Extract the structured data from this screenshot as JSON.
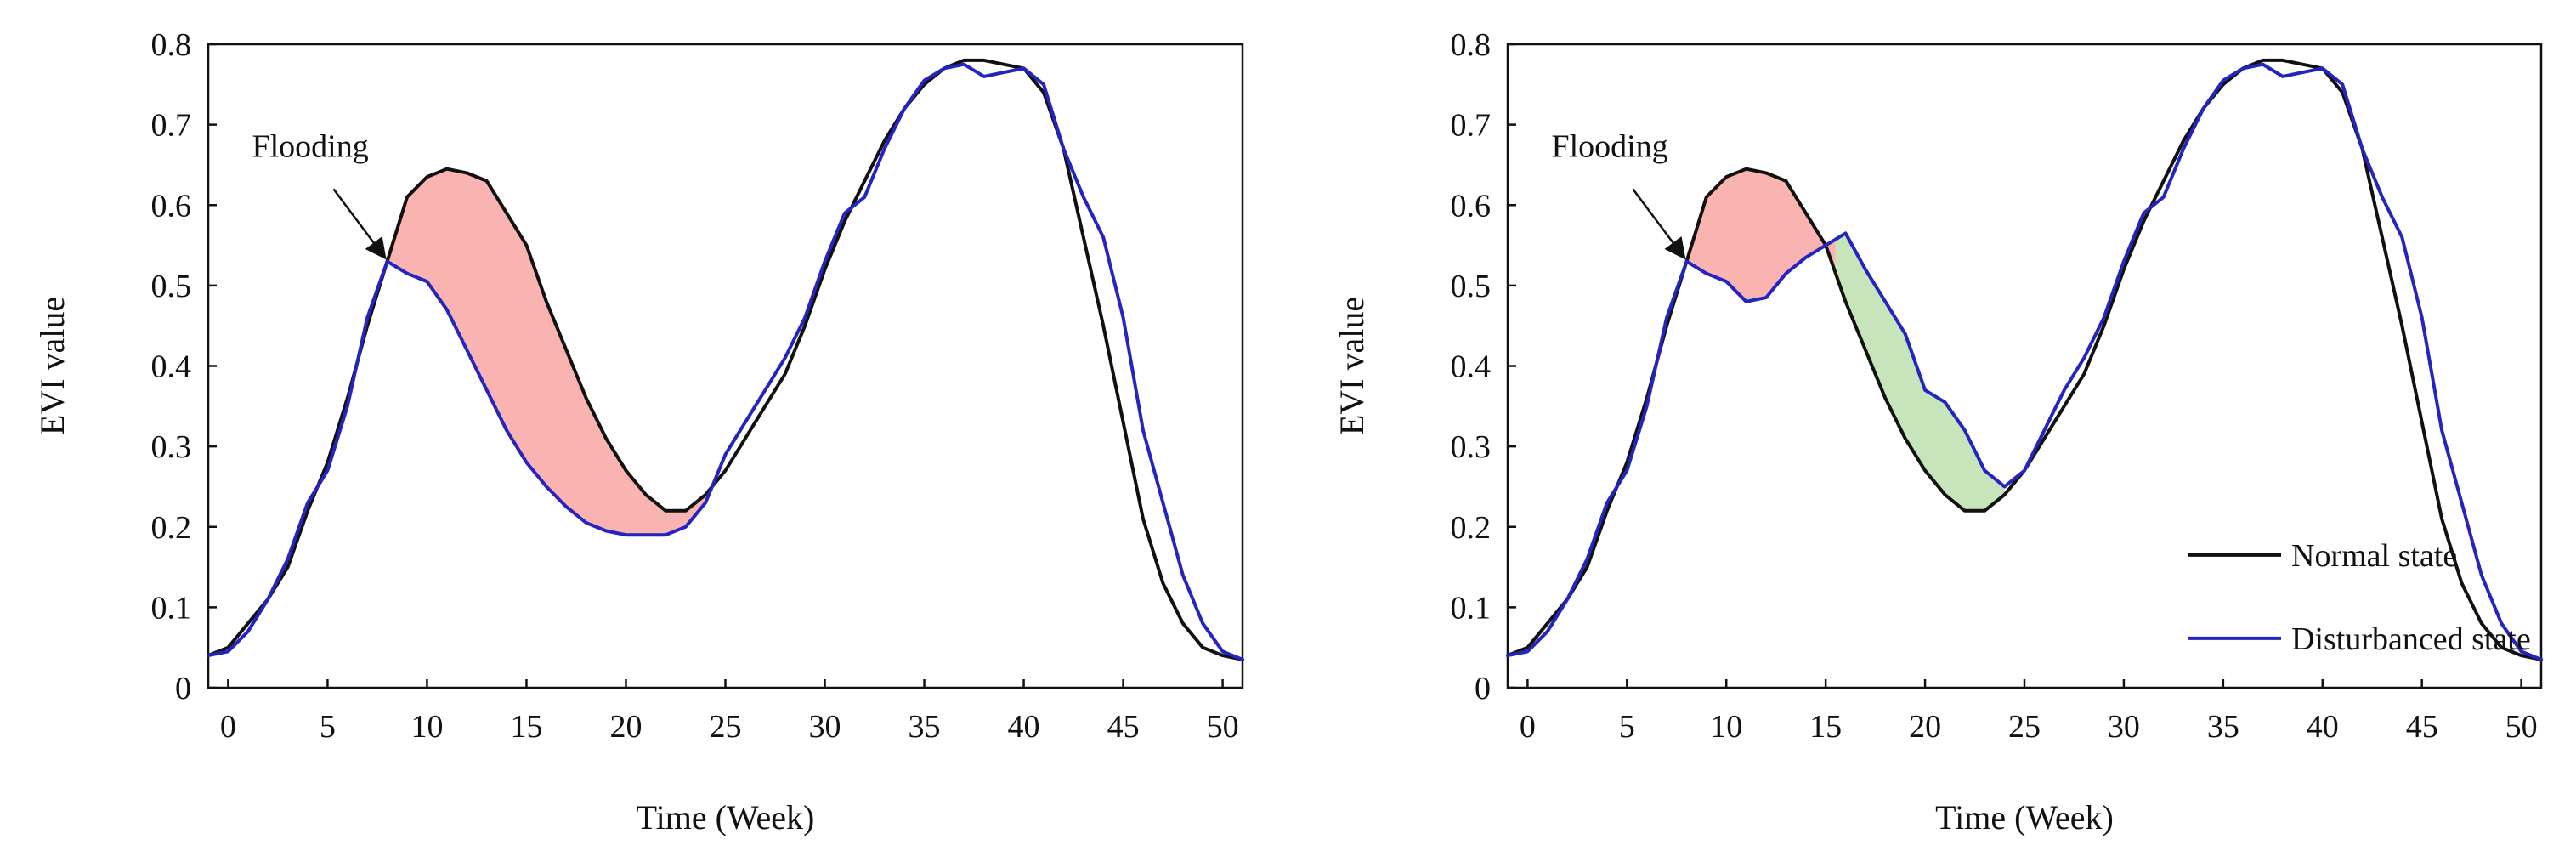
{
  "chart_data": [
    {
      "type": "line",
      "xlabel": "Time (Week)",
      "ylabel": "EVI value",
      "xlim": [
        -1,
        51
      ],
      "ylim": [
        0,
        0.8
      ],
      "xticks": [
        0,
        5,
        10,
        15,
        20,
        25,
        30,
        35,
        40,
        45,
        50
      ],
      "yticks": [
        0,
        0.1,
        0.2,
        0.3,
        0.4,
        0.5,
        0.6,
        0.7,
        0.8
      ],
      "ytick_labels": [
        "0",
        "0.1",
        "0.2",
        "0.3",
        "0.4",
        "0.5",
        "0.6",
        "0.7",
        "0.8"
      ],
      "annotation": {
        "text": "Flooding",
        "arrow_to": [
          8,
          0.53
        ],
        "text_at": [
          1.2,
          0.66
        ]
      },
      "shaded_regions": [
        {
          "color": "#f9b3b1",
          "x_from": 8,
          "x_to": 24.5,
          "upper": "normal",
          "lower": "disturbed"
        }
      ],
      "series": [
        {
          "key": "normal",
          "color": "#111111",
          "x": [
            -1,
            0,
            1,
            2,
            3,
            4,
            5,
            6,
            7,
            8,
            9,
            10,
            11,
            12,
            13,
            14,
            15,
            16,
            17,
            18,
            19,
            20,
            21,
            22,
            23,
            24,
            25,
            26,
            27,
            28,
            29,
            30,
            31,
            32,
            33,
            34,
            35,
            36,
            37,
            38,
            39,
            40,
            41,
            42,
            43,
            44,
            45,
            46,
            47,
            48,
            49,
            50,
            51
          ],
          "y": [
            0.04,
            0.05,
            0.08,
            0.11,
            0.15,
            0.22,
            0.28,
            0.36,
            0.45,
            0.53,
            0.61,
            0.635,
            0.645,
            0.64,
            0.63,
            0.59,
            0.55,
            0.48,
            0.42,
            0.36,
            0.31,
            0.27,
            0.24,
            0.22,
            0.22,
            0.24,
            0.27,
            0.31,
            0.35,
            0.39,
            0.45,
            0.52,
            0.58,
            0.63,
            0.68,
            0.72,
            0.75,
            0.77,
            0.78,
            0.78,
            0.775,
            0.77,
            0.74,
            0.67,
            0.56,
            0.45,
            0.33,
            0.21,
            0.13,
            0.08,
            0.05,
            0.04,
            0.035
          ]
        },
        {
          "key": "disturbed",
          "color": "#2424bf",
          "x": [
            -1,
            0,
            1,
            2,
            3,
            4,
            5,
            6,
            7,
            8,
            9,
            10,
            11,
            12,
            13,
            14,
            15,
            16,
            17,
            18,
            19,
            20,
            21,
            22,
            23,
            24,
            25,
            26,
            27,
            28,
            29,
            30,
            31,
            32,
            33,
            34,
            35,
            36,
            37,
            38,
            39,
            40,
            41,
            42,
            43,
            44,
            45,
            46,
            47,
            48,
            49,
            50,
            51
          ],
          "y": [
            0.04,
            0.045,
            0.07,
            0.11,
            0.16,
            0.23,
            0.27,
            0.35,
            0.46,
            0.53,
            0.515,
            0.505,
            0.47,
            0.42,
            0.37,
            0.32,
            0.28,
            0.25,
            0.225,
            0.205,
            0.195,
            0.19,
            0.19,
            0.19,
            0.2,
            0.23,
            0.29,
            0.33,
            0.37,
            0.41,
            0.46,
            0.53,
            0.59,
            0.61,
            0.67,
            0.72,
            0.755,
            0.77,
            0.775,
            0.76,
            0.765,
            0.77,
            0.75,
            0.67,
            0.61,
            0.56,
            0.46,
            0.32,
            0.23,
            0.14,
            0.08,
            0.045,
            0.035
          ]
        }
      ]
    },
    {
      "type": "line",
      "xlabel": "Time (Week)",
      "ylabel": "EVI value",
      "xlim": [
        -1,
        51
      ],
      "ylim": [
        0,
        0.8
      ],
      "xticks": [
        0,
        5,
        10,
        15,
        20,
        25,
        30,
        35,
        40,
        45,
        50
      ],
      "yticks": [
        0,
        0.1,
        0.2,
        0.3,
        0.4,
        0.5,
        0.6,
        0.7,
        0.8
      ],
      "ytick_labels": [
        "0",
        "0.1",
        "0.2",
        "0.3",
        "0.4",
        "0.5",
        "0.6",
        "0.7",
        "0.8"
      ],
      "annotation": {
        "text": "Flooding",
        "arrow_to": [
          8,
          0.53
        ],
        "text_at": [
          1.2,
          0.66
        ]
      },
      "legend": {
        "position": "lower-right",
        "entries": [
          "Normal state",
          "Disturbanced state"
        ],
        "series_keys": [
          "normal",
          "disturbed"
        ]
      },
      "shaded_regions": [
        {
          "color": "#f9b3b1",
          "x_from": 8,
          "x_to": 15.5,
          "upper": "normal",
          "lower": "disturbed"
        },
        {
          "color": "#c7e5bb",
          "x_from": 15.5,
          "x_to": 24,
          "upper": "disturbed",
          "lower": "normal"
        }
      ],
      "series": [
        {
          "key": "normal",
          "color": "#111111",
          "x": [
            -1,
            0,
            1,
            2,
            3,
            4,
            5,
            6,
            7,
            8,
            9,
            10,
            11,
            12,
            13,
            14,
            15,
            16,
            17,
            18,
            19,
            20,
            21,
            22,
            23,
            24,
            25,
            26,
            27,
            28,
            29,
            30,
            31,
            32,
            33,
            34,
            35,
            36,
            37,
            38,
            39,
            40,
            41,
            42,
            43,
            44,
            45,
            46,
            47,
            48,
            49,
            50,
            51
          ],
          "y": [
            0.04,
            0.05,
            0.08,
            0.11,
            0.15,
            0.22,
            0.28,
            0.36,
            0.45,
            0.53,
            0.61,
            0.635,
            0.645,
            0.64,
            0.63,
            0.59,
            0.55,
            0.48,
            0.42,
            0.36,
            0.31,
            0.27,
            0.24,
            0.22,
            0.22,
            0.24,
            0.27,
            0.31,
            0.35,
            0.39,
            0.45,
            0.52,
            0.58,
            0.63,
            0.68,
            0.72,
            0.75,
            0.77,
            0.78,
            0.78,
            0.775,
            0.77,
            0.74,
            0.67,
            0.56,
            0.45,
            0.33,
            0.21,
            0.13,
            0.08,
            0.05,
            0.04,
            0.035
          ]
        },
        {
          "key": "disturbed",
          "color": "#2424bf",
          "x": [
            -1,
            0,
            1,
            2,
            3,
            4,
            5,
            6,
            7,
            8,
            9,
            10,
            11,
            12,
            13,
            14,
            15,
            16,
            17,
            18,
            19,
            20,
            21,
            22,
            23,
            24,
            25,
            26,
            27,
            28,
            29,
            30,
            31,
            32,
            33,
            34,
            35,
            36,
            37,
            38,
            39,
            40,
            41,
            42,
            43,
            44,
            45,
            46,
            47,
            48,
            49,
            50,
            51
          ],
          "y": [
            0.04,
            0.045,
            0.07,
            0.11,
            0.16,
            0.23,
            0.27,
            0.35,
            0.46,
            0.53,
            0.515,
            0.505,
            0.48,
            0.485,
            0.515,
            0.535,
            0.55,
            0.565,
            0.52,
            0.48,
            0.44,
            0.37,
            0.355,
            0.32,
            0.27,
            0.25,
            0.27,
            0.32,
            0.37,
            0.41,
            0.46,
            0.53,
            0.59,
            0.61,
            0.67,
            0.72,
            0.755,
            0.77,
            0.775,
            0.76,
            0.765,
            0.77,
            0.75,
            0.67,
            0.61,
            0.56,
            0.46,
            0.32,
            0.23,
            0.14,
            0.08,
            0.045,
            0.035
          ]
        }
      ]
    }
  ]
}
